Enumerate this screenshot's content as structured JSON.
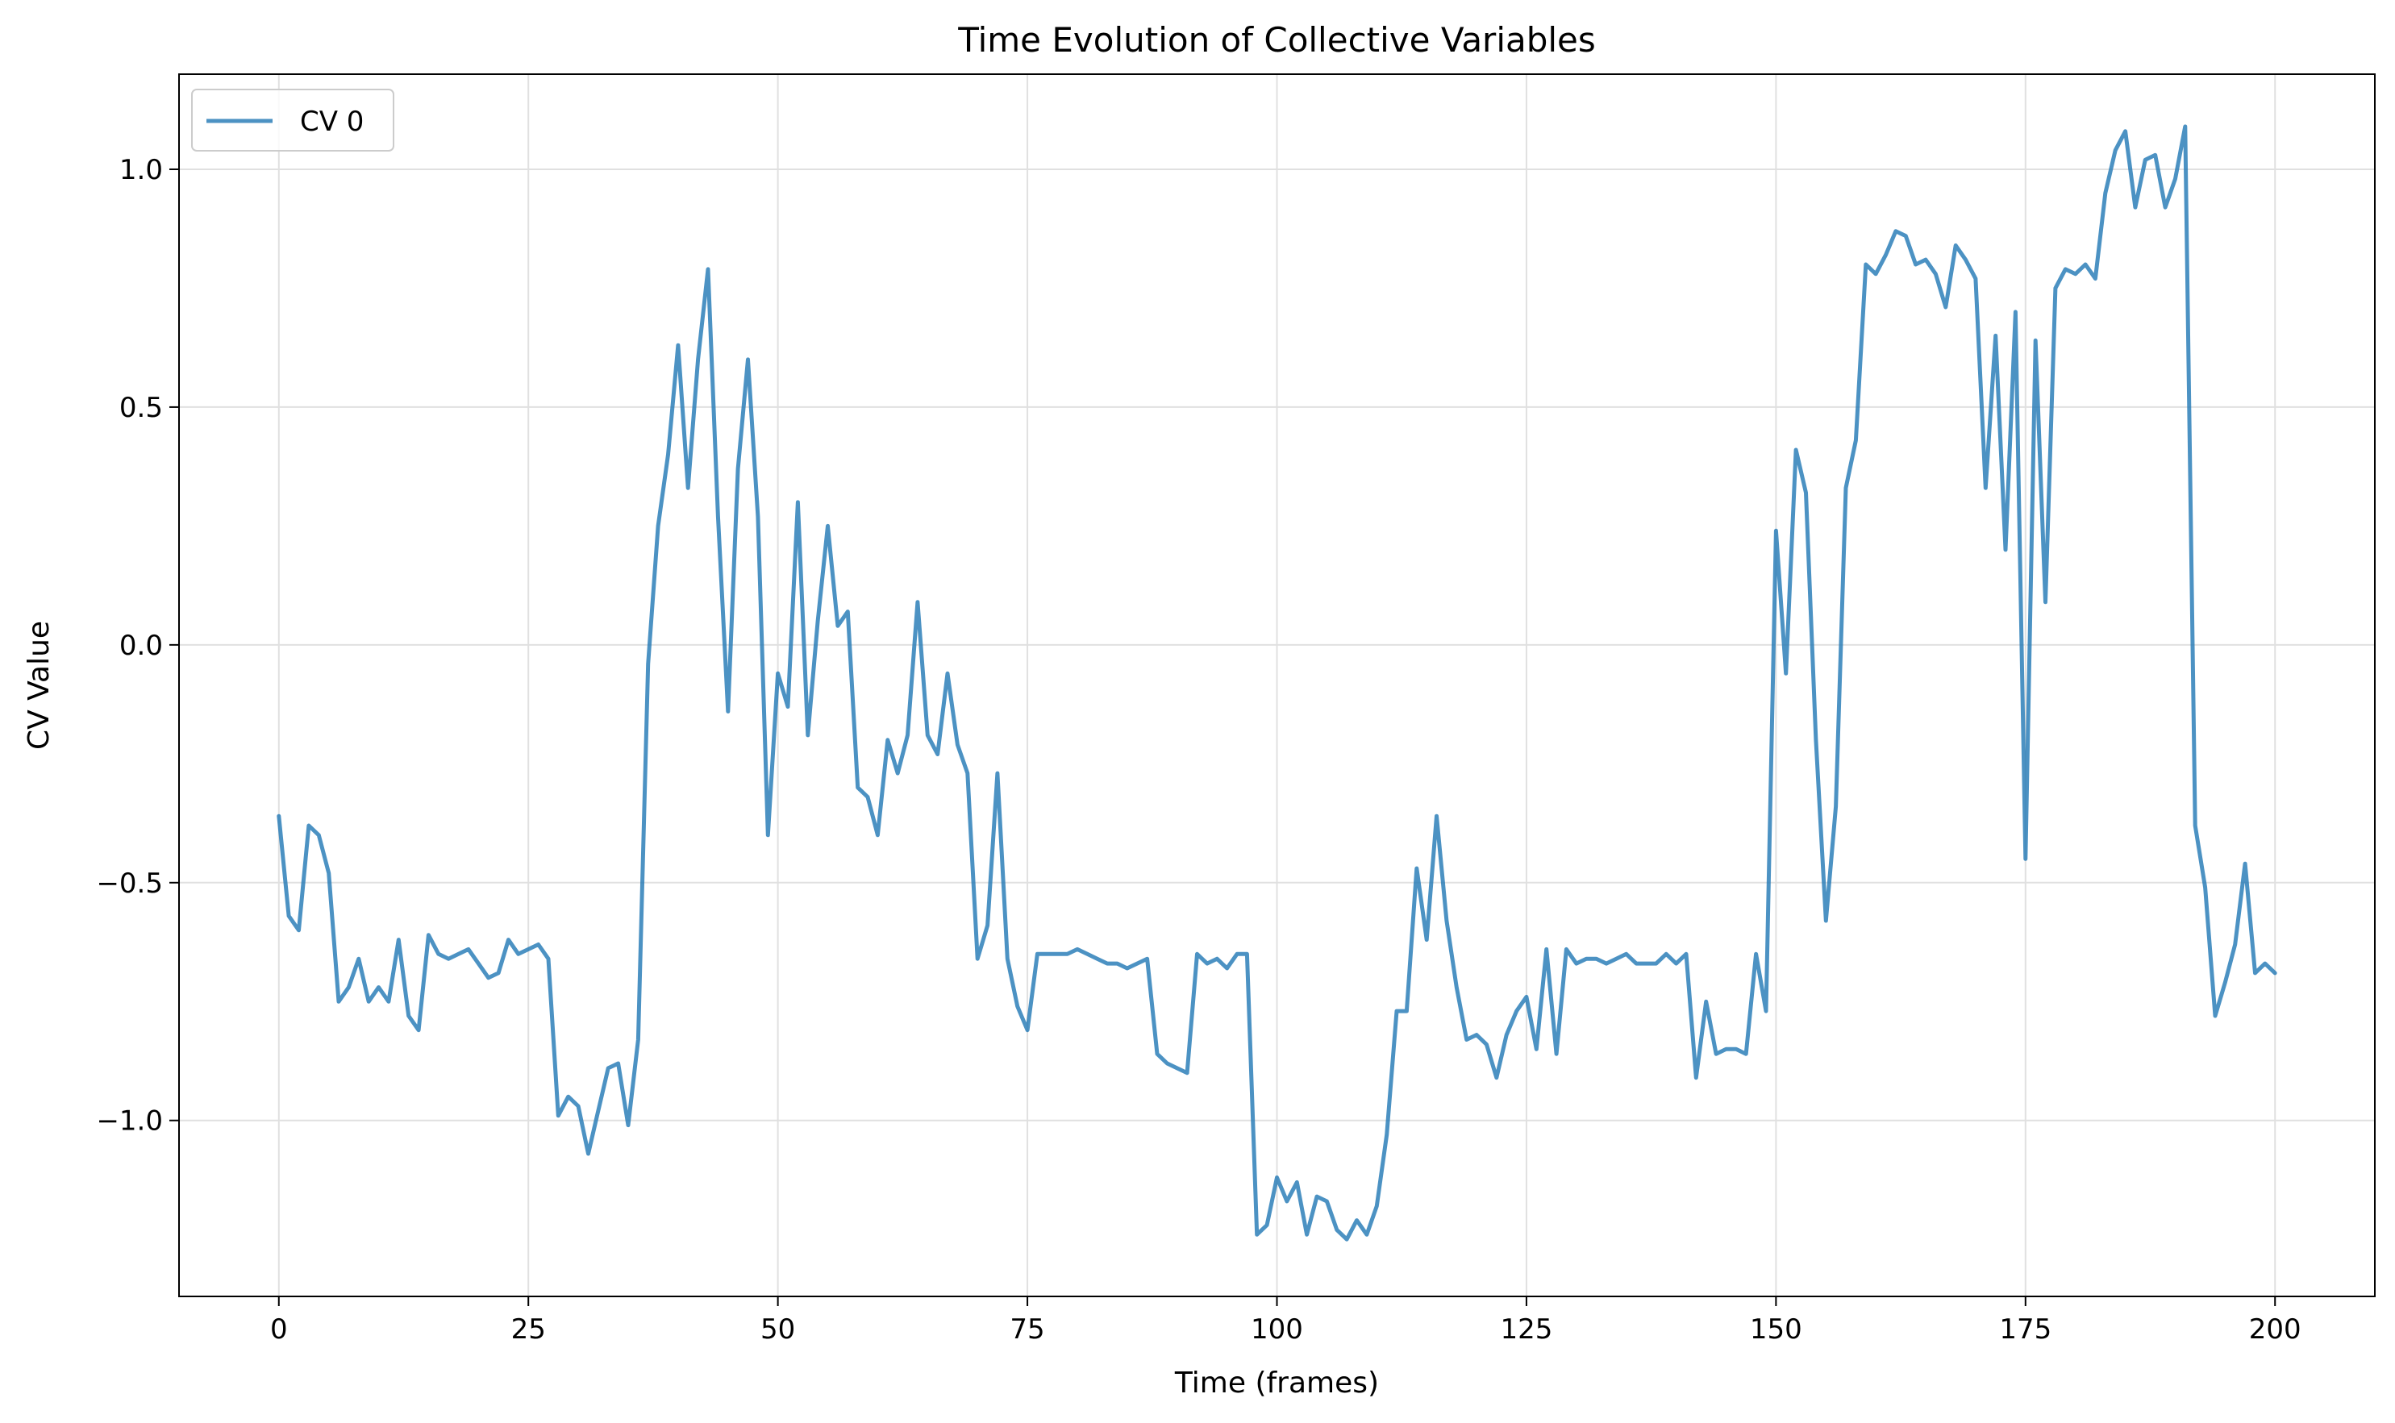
{
  "chart_data": {
    "type": "line",
    "title": "Time Evolution of Collective Variables",
    "xlabel": "Time (frames)",
    "ylabel": "CV Value",
    "xlim": [
      -10,
      210
    ],
    "ylim": [
      -1.37,
      1.2
    ],
    "xticks": [
      0,
      25,
      50,
      75,
      100,
      125,
      150,
      175,
      200
    ],
    "xtick_labels": [
      "0",
      "25",
      "50",
      "75",
      "100",
      "125",
      "150",
      "175",
      "200"
    ],
    "yticks": [
      -1.0,
      -0.5,
      0.0,
      0.5,
      1.0
    ],
    "ytick_labels": [
      "−1.0",
      "−0.5",
      "0.0",
      "0.5",
      "1.0"
    ],
    "grid": true,
    "legend_position": "top-left",
    "series": [
      {
        "name": "CV 0",
        "color": "#1f77b4",
        "x": [
          0,
          1,
          2,
          3,
          4,
          5,
          6,
          7,
          8,
          9,
          10,
          11,
          12,
          13,
          14,
          15,
          16,
          17,
          18,
          19,
          20,
          21,
          22,
          23,
          24,
          25,
          26,
          27,
          28,
          29,
          30,
          31,
          32,
          33,
          34,
          35,
          36,
          37,
          38,
          39,
          40,
          41,
          42,
          43,
          44,
          45,
          46,
          47,
          48,
          49,
          50,
          51,
          52,
          53,
          54,
          55,
          56,
          57,
          58,
          59,
          60,
          61,
          62,
          63,
          64,
          65,
          66,
          67,
          68,
          69,
          70,
          71,
          72,
          73,
          74,
          75,
          76,
          77,
          78,
          79,
          80,
          81,
          82,
          83,
          84,
          85,
          86,
          87,
          88,
          89,
          90,
          91,
          92,
          93,
          94,
          95,
          96,
          97,
          98,
          99,
          100,
          101,
          102,
          103,
          104,
          105,
          106,
          107,
          108,
          109,
          110,
          111,
          112,
          113,
          114,
          115,
          116,
          117,
          118,
          119,
          120,
          121,
          122,
          123,
          124,
          125,
          126,
          127,
          128,
          129,
          130,
          131,
          132,
          133,
          134,
          135,
          136,
          137,
          138,
          139,
          140,
          141,
          142,
          143,
          144,
          145,
          146,
          147,
          148,
          149,
          150,
          151,
          152,
          153,
          154,
          155,
          156,
          157,
          158,
          159,
          160,
          161,
          162,
          163,
          164,
          165,
          166,
          167,
          168,
          169,
          170,
          171,
          172,
          173,
          174,
          175,
          176,
          177,
          178,
          179,
          180,
          181,
          182,
          183,
          184,
          185,
          186,
          187,
          188,
          189,
          190,
          191,
          192,
          193,
          194,
          195,
          196,
          197,
          198,
          199,
          200
        ],
        "y": [
          -0.36,
          -0.57,
          -0.6,
          -0.38,
          -0.4,
          -0.48,
          -0.75,
          -0.72,
          -0.66,
          -0.75,
          -0.72,
          -0.75,
          -0.62,
          -0.78,
          -0.81,
          -0.61,
          -0.65,
          -0.66,
          -0.65,
          -0.64,
          -0.67,
          -0.7,
          -0.69,
          -0.62,
          -0.65,
          -0.64,
          -0.63,
          -0.66,
          -0.99,
          -0.95,
          -0.97,
          -1.07,
          -0.98,
          -0.89,
          -0.88,
          -1.01,
          -0.83,
          -0.04,
          0.25,
          0.4,
          0.63,
          0.33,
          0.6,
          0.79,
          0.27,
          -0.14,
          0.37,
          0.6,
          0.27,
          -0.4,
          -0.06,
          -0.13,
          0.3,
          -0.19,
          0.05,
          0.25,
          0.04,
          0.07,
          -0.3,
          -0.32,
          -0.4,
          -0.2,
          -0.27,
          -0.19,
          0.09,
          -0.19,
          -0.23,
          -0.06,
          -0.21,
          -0.27,
          -0.66,
          -0.59,
          -0.27,
          -0.66,
          -0.76,
          -0.81,
          -0.65,
          -0.65,
          -0.65,
          -0.65,
          -0.64,
          -0.65,
          -0.66,
          -0.67,
          -0.67,
          -0.68,
          -0.67,
          -0.66,
          -0.86,
          -0.88,
          -0.89,
          -0.9,
          -0.65,
          -0.67,
          -0.66,
          -0.68,
          -0.65,
          -0.65,
          -1.24,
          -1.22,
          -1.12,
          -1.17,
          -1.13,
          -1.24,
          -1.16,
          -1.17,
          -1.23,
          -1.25,
          -1.21,
          -1.24,
          -1.18,
          -1.03,
          -0.77,
          -0.77,
          -0.47,
          -0.62,
          -0.36,
          -0.58,
          -0.72,
          -0.83,
          -0.82,
          -0.84,
          -0.91,
          -0.82,
          -0.77,
          -0.74,
          -0.85,
          -0.64,
          -0.86,
          -0.64,
          -0.67,
          -0.66,
          -0.66,
          -0.67,
          -0.66,
          -0.65,
          -0.67,
          -0.67,
          -0.67,
          -0.65,
          -0.67,
          -0.65,
          -0.91,
          -0.75,
          -0.86,
          -0.85,
          -0.85,
          -0.86,
          -0.65,
          -0.77,
          0.24,
          -0.06,
          0.41,
          0.32,
          -0.2,
          -0.58,
          -0.34,
          0.33,
          0.43,
          0.8,
          0.78,
          0.82,
          0.87,
          0.86,
          0.8,
          0.81,
          0.78,
          0.71,
          0.84,
          0.81,
          0.77,
          0.33,
          0.65,
          0.2,
          0.7,
          -0.45,
          0.64,
          0.09,
          0.75,
          0.79,
          0.78,
          0.8,
          0.77,
          0.95,
          1.04,
          1.08,
          0.92,
          1.02,
          1.03,
          0.92,
          0.98,
          1.09,
          -0.38,
          -0.51,
          -0.78,
          -0.71,
          -0.63,
          -0.46,
          -0.69,
          -0.67,
          -0.69
        ]
      }
    ]
  }
}
